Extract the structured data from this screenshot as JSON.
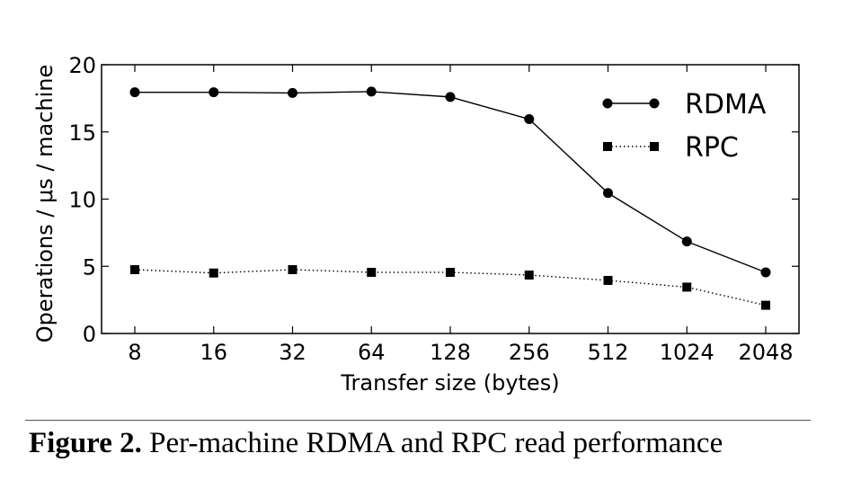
{
  "chart_data": {
    "type": "line",
    "categories": [
      "8",
      "16",
      "32",
      "64",
      "128",
      "256",
      "512",
      "1024",
      "2048"
    ],
    "series": [
      {
        "name": "RDMA",
        "values": [
          17.95,
          17.95,
          17.9,
          18.0,
          17.6,
          15.95,
          10.45,
          6.85,
          4.55
        ],
        "marker": "circle",
        "line": "solid",
        "color": "#000000"
      },
      {
        "name": "RPC",
        "values": [
          4.75,
          4.5,
          4.75,
          4.55,
          4.55,
          4.35,
          3.95,
          3.45,
          2.1
        ],
        "marker": "square",
        "line": "dotted",
        "color": "#000000"
      }
    ],
    "xlabel": "Transfer size (bytes)",
    "ylabel": "Operations / μs / machine",
    "ylim": [
      0,
      20
    ],
    "yticks": [
      "0",
      "5",
      "10",
      "15",
      "20"
    ],
    "grid": false,
    "legend_position": "top-right"
  },
  "caption": {
    "label": "Figure 2.",
    "text": "Per-machine RDMA and RPC read performance"
  }
}
